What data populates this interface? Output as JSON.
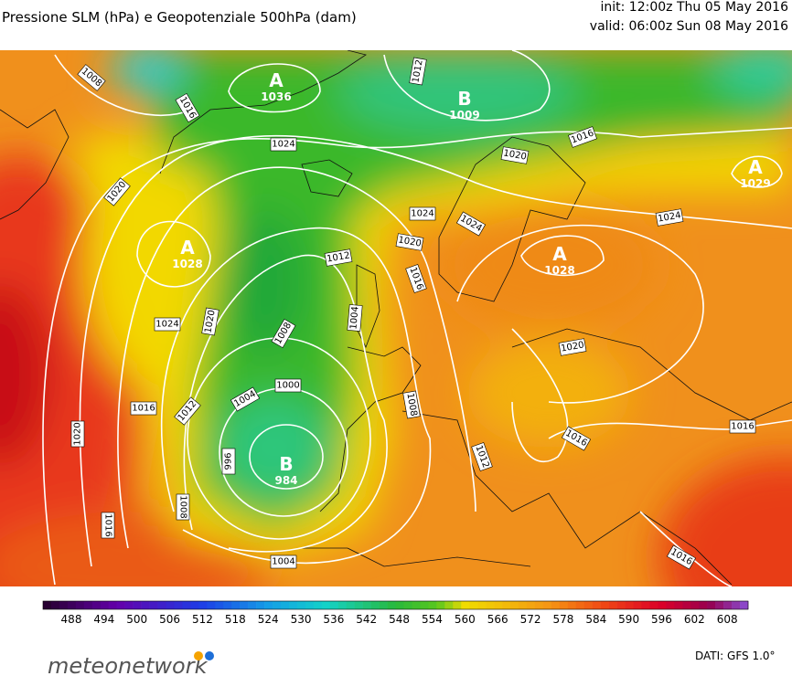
{
  "header": {
    "title": "Pressione SLM (hPa) e Geopotenziale 500hPa (dam)",
    "init": "init: 12:00z Thu 05 May 2016",
    "valid": "valid: 06:00z Sun 08 May 2016"
  },
  "map": {
    "isobar_labels": [
      1008,
      1016,
      1024,
      1012,
      1016,
      1020,
      1020,
      1024,
      1024,
      1024,
      1020,
      1012,
      1016,
      1024,
      1020,
      1008,
      1004,
      1000,
      1004,
      1012,
      1016,
      1008,
      1020,
      1016,
      1012,
      1016,
      1020,
      996,
      1008,
      1016,
      1004,
      1016
    ],
    "centers": [
      {
        "letter": "A",
        "value": 1036
      },
      {
        "letter": "B",
        "value": 1009
      },
      {
        "letter": "A",
        "value": 1029
      },
      {
        "letter": "A",
        "value": 1028
      },
      {
        "letter": "A",
        "value": 1028
      },
      {
        "letter": "B",
        "value": 984
      }
    ]
  },
  "colorbar": {
    "ticks": [
      488,
      494,
      500,
      506,
      512,
      518,
      524,
      530,
      536,
      542,
      548,
      554,
      560,
      566,
      572,
      578,
      584,
      590,
      596,
      602,
      608
    ]
  },
  "footer": {
    "logo": "meteonetwork",
    "source": "DATI: GFS 1.0°"
  }
}
